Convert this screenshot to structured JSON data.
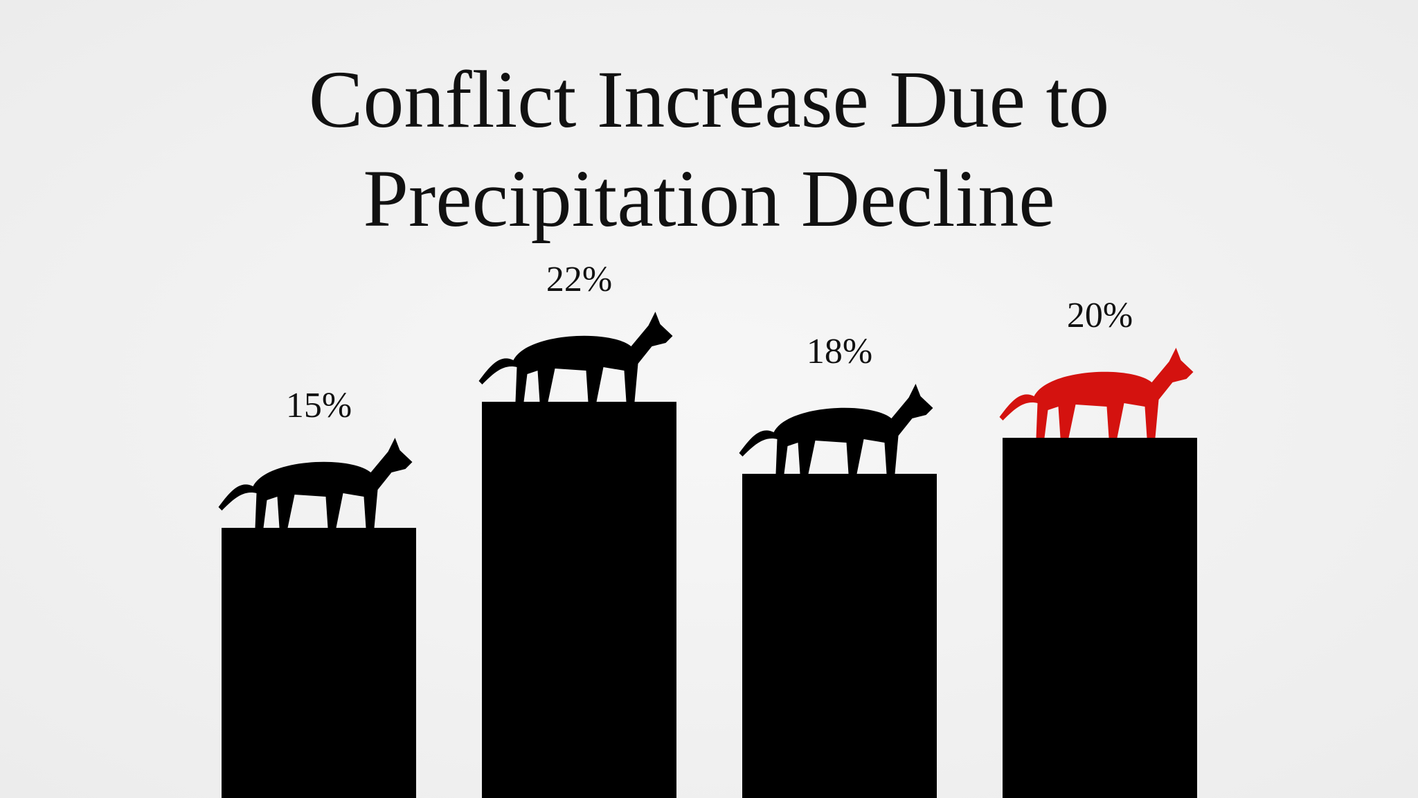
{
  "chart_data": {
    "type": "bar",
    "title": "Conflict Increase Due to Precipitation Decline",
    "categories": [
      null,
      null,
      null,
      null
    ],
    "values": [
      15,
      22,
      18,
      20
    ],
    "value_labels": [
      "15%",
      "22%",
      "18%",
      "20%"
    ],
    "colors": [
      "#000000",
      "#000000",
      "#000000",
      "#d4120f"
    ]
  }
}
